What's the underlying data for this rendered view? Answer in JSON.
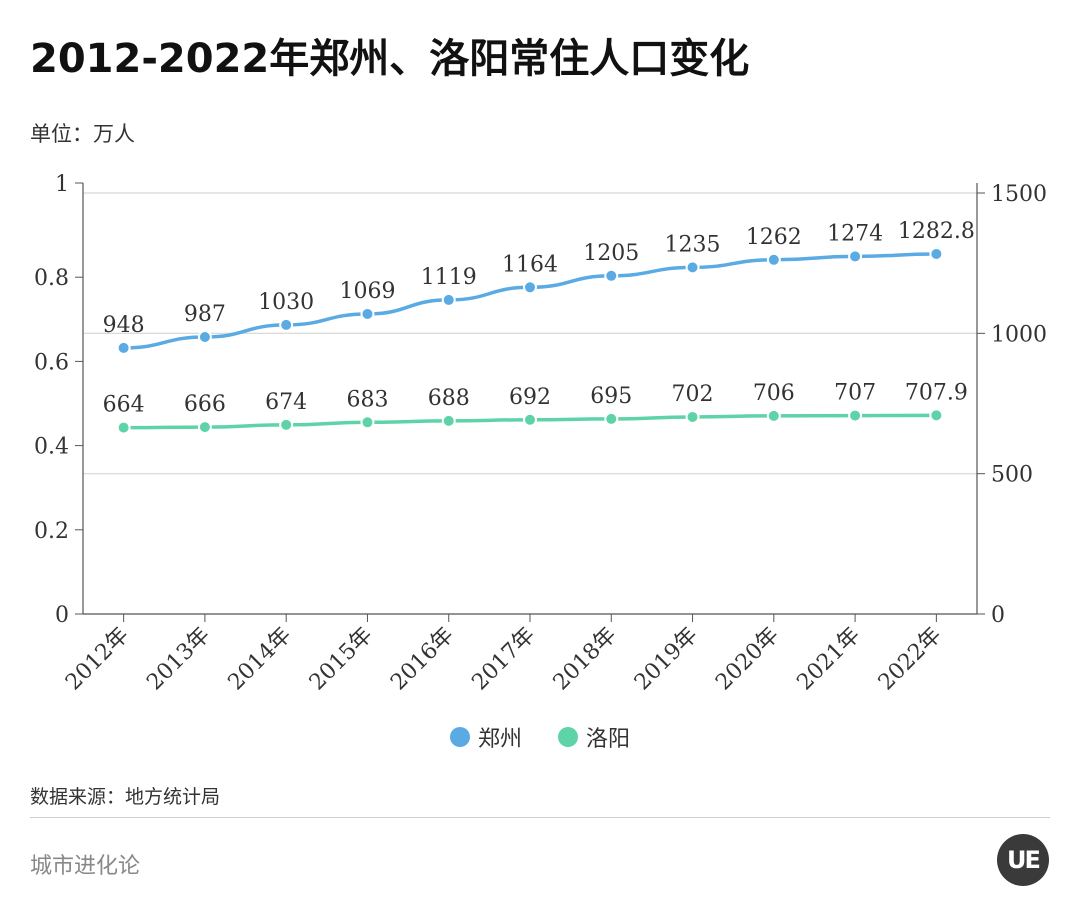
{
  "title": "2012-2022年郑州、洛阳常住人口变化",
  "unit_label": "单位：万人",
  "source_label": "数据来源：地方统计局",
  "footer_brand": "城市进化论",
  "logo_text": "UE",
  "chart_data": {
    "type": "line",
    "categories": [
      "2012年",
      "2013年",
      "2014年",
      "2015年",
      "2016年",
      "2017年",
      "2018年",
      "2019年",
      "2020年",
      "2021年",
      "2022年"
    ],
    "series": [
      {
        "name": "郑州",
        "color": "#5aaae4",
        "values": [
          948,
          987,
          1030,
          1069,
          1119,
          1164,
          1205,
          1235,
          1262,
          1274,
          1282.8
        ],
        "labels": [
          "948",
          "987",
          "1030",
          "1069",
          "1119",
          "1164",
          "1205",
          "1235",
          "1262",
          "1274",
          "1282.8"
        ]
      },
      {
        "name": "洛阳",
        "color": "#5ed3a8",
        "values": [
          664,
          666,
          674,
          683,
          688,
          692,
          695,
          702,
          706,
          707,
          707.9
        ],
        "labels": [
          "664",
          "666",
          "674",
          "683",
          "688",
          "692",
          "695",
          "702",
          "706",
          "707",
          "707.9"
        ]
      }
    ],
    "left_axis": {
      "ylim": [
        0,
        1
      ],
      "ticks": [
        "0",
        "0.2",
        "0.4",
        "0.6",
        "0.8",
        "1"
      ]
    },
    "right_axis": {
      "ylim": [
        0,
        1500
      ],
      "ticks": [
        "0",
        "500",
        "1000",
        "1500"
      ]
    },
    "legend_position": "bottom-center",
    "grid": true
  },
  "colors": {
    "zhengzhou": "#5aaae4",
    "luoyang": "#5ed3a8",
    "grid": "#d6d6d6",
    "axis": "#555555"
  }
}
